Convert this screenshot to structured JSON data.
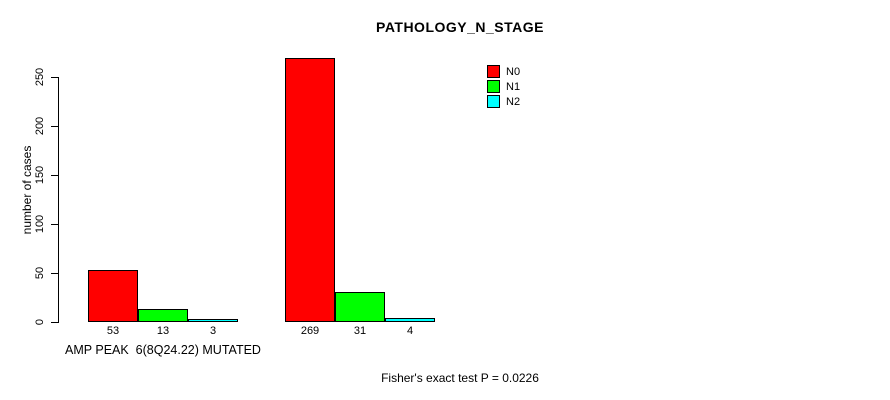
{
  "page": {
    "background": "#ffffff"
  },
  "chart_data": {
    "type": "bar",
    "title": "PATHOLOGY_N_STAGE",
    "ylabel": "number of cases",
    "xlabel": "AMP PEAK  6(8Q24.22) MUTATED",
    "ylim": [
      0,
      270
    ],
    "yticks": [
      0,
      50,
      100,
      150,
      200,
      250
    ],
    "grid": false,
    "legend_position": "top-right",
    "categories": [
      "N0",
      "N1",
      "N2"
    ],
    "legend": [
      {
        "label": "N0",
        "color": "#ff0000"
      },
      {
        "label": "N1",
        "color": "#00ff00"
      },
      {
        "label": "N2",
        "color": "#00ffff"
      }
    ],
    "groups": [
      {
        "label": "AMP PEAK  6(8Q24.22) MUTATED",
        "values": [
          53,
          13,
          3
        ]
      },
      {
        "label": "",
        "values": [
          269,
          31,
          4
        ]
      }
    ],
    "bar_border_color": "#000000",
    "annotation": "Fisher's exact test P = 0.0226"
  }
}
